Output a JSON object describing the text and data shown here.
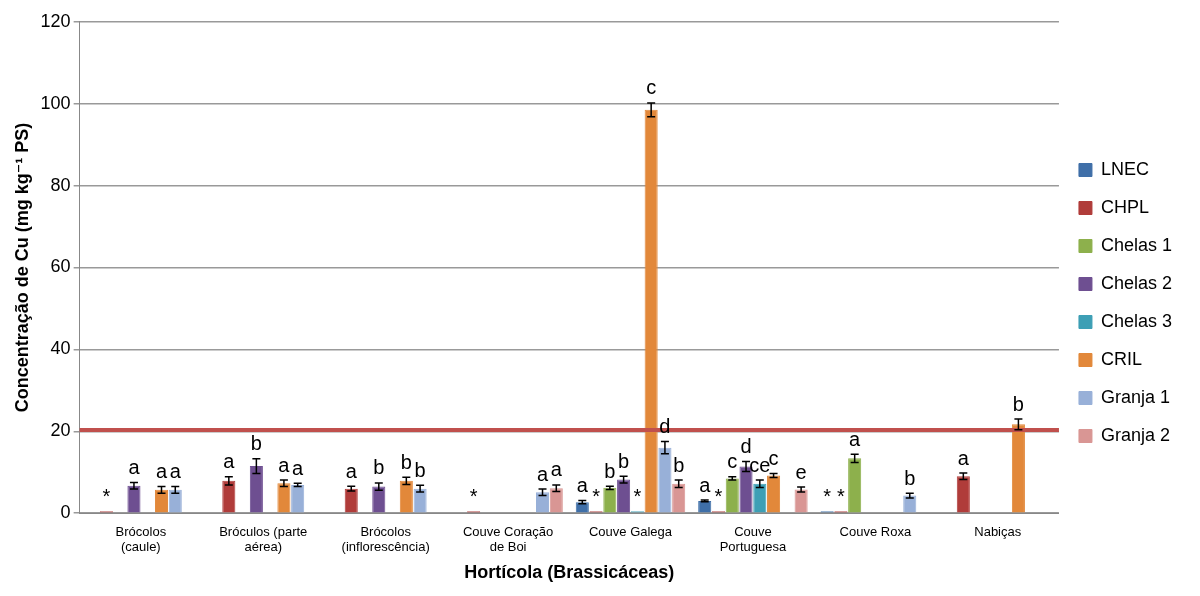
{
  "chart_data": {
    "type": "bar",
    "xlabel": "Hortícola (Brassicáceas)",
    "ylabel": "Concentração de Cu (mg kg⁻¹ PS)",
    "categories": [
      "Brócolos (caule)",
      "Bróculos (parte aérea)",
      "Brócolos (inflorescência)",
      "Couve Coração de Boi",
      "Couve Galega",
      "Couve Portuguesa",
      "Couve Roxa",
      "Nabiças"
    ],
    "series": [
      {
        "name": "LNEC",
        "color": "#3f6fa8",
        "values": [
          null,
          null,
          null,
          null,
          2.7,
          3.0,
          0,
          null
        ],
        "errors": [
          null,
          null,
          null,
          null,
          0.4,
          0.2,
          null,
          null
        ],
        "value_labels": [
          null,
          null,
          null,
          null,
          "a",
          "a",
          "*",
          null
        ]
      },
      {
        "name": "CHPL",
        "color": "#b03c3a",
        "values": [
          0,
          7.9,
          6.0,
          0,
          0,
          0,
          0,
          9.0
        ],
        "errors": [
          null,
          1.0,
          0.6,
          null,
          null,
          null,
          null,
          0.8
        ],
        "value_labels": [
          "*",
          "a",
          "a",
          "*",
          "*",
          "*",
          "*",
          "a"
        ]
      },
      {
        "name": "Chelas 1",
        "color": "#8db04c",
        "values": [
          null,
          null,
          null,
          null,
          6.2,
          8.5,
          13.4,
          null
        ],
        "errors": [
          null,
          null,
          null,
          null,
          0.4,
          0.4,
          1.0,
          null
        ],
        "value_labels": [
          null,
          null,
          null,
          null,
          "b",
          "c",
          "a",
          null
        ]
      },
      {
        "name": "Chelas 2",
        "color": "#6e4f91",
        "values": [
          6.7,
          11.5,
          6.5,
          null,
          8.2,
          11.4,
          null,
          null
        ],
        "errors": [
          0.8,
          1.8,
          0.9,
          null,
          0.8,
          1.2,
          null,
          null
        ],
        "value_labels": [
          "a",
          "b",
          "b",
          null,
          "b",
          "d",
          null,
          null
        ]
      },
      {
        "name": "Chelas 3",
        "color": "#3d9fb5",
        "values": [
          null,
          null,
          null,
          null,
          0,
          7.2,
          null,
          null
        ],
        "errors": [
          null,
          null,
          null,
          null,
          null,
          0.9,
          null,
          null
        ],
        "value_labels": [
          null,
          null,
          null,
          null,
          "*",
          "ce",
          null,
          null
        ]
      },
      {
        "name": "CRIL",
        "color": "#e2883a",
        "values": [
          5.7,
          7.3,
          7.9,
          null,
          98.5,
          9.2,
          null,
          21.7
        ],
        "errors": [
          0.8,
          0.8,
          0.9,
          null,
          1.7,
          0.5,
          null,
          1.3
        ],
        "value_labels": [
          "a",
          "a",
          "b",
          null,
          "c",
          "c",
          null,
          "b"
        ]
      },
      {
        "name": "Granja 1",
        "color": "#98b0d8",
        "values": [
          5.7,
          6.9,
          6.0,
          5.1,
          16.0,
          null,
          4.3,
          null
        ],
        "errors": [
          0.8,
          0.4,
          0.8,
          0.8,
          1.5,
          null,
          0.6,
          null
        ],
        "value_labels": [
          "a",
          "a",
          "b",
          "a",
          "d",
          null,
          "b",
          null
        ]
      },
      {
        "name": "Granja 2",
        "color": "#d99694",
        "values": [
          null,
          null,
          null,
          6.1,
          7.2,
          5.8,
          null,
          null
        ],
        "errors": [
          null,
          null,
          null,
          0.8,
          0.9,
          0.6,
          null,
          null
        ],
        "value_labels": [
          null,
          null,
          null,
          "a",
          "b",
          "e",
          null,
          null
        ]
      }
    ],
    "ylim": [
      0,
      120
    ],
    "yticks": [
      0,
      20,
      40,
      60,
      80,
      100,
      120
    ],
    "grid": "y",
    "legend": "right",
    "ref_lines": [
      {
        "axis": "y",
        "value": 20.3,
        "color": "#c0504d"
      }
    ]
  }
}
